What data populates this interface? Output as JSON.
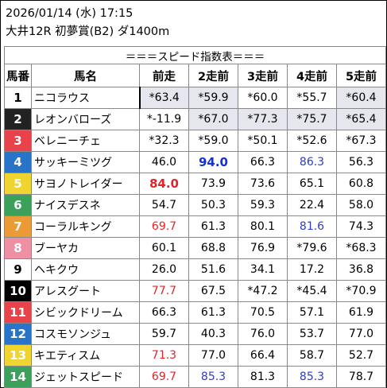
{
  "header": {
    "datetime": "2026/01/14 (水) 17:15",
    "race": "大井12R 初夢賞(B2) ダ1400m"
  },
  "table": {
    "title": "＝＝＝スピード指数表＝＝＝",
    "columns": [
      "馬番",
      "馬名",
      "前走",
      "2走前",
      "3走前",
      "4走前",
      "5走前"
    ],
    "rows": [
      {
        "num": "1",
        "name": "ニコラウス",
        "color": "#ffffff",
        "text_color": "#000000",
        "values": [
          "*63.4",
          "*59.9",
          "*60.0",
          "*55.7",
          "*60.4"
        ],
        "styles": [
          "",
          "",
          "",
          "",
          ""
        ],
        "grey": [
          true,
          true,
          false,
          false,
          true
        ]
      },
      {
        "num": "2",
        "name": "レオンバローズ",
        "color": "#222222",
        "text_color": "#ffffff",
        "values": [
          "*-11.9",
          "*67.0",
          "*77.3",
          "*75.7",
          "*65.4"
        ],
        "styles": [
          "",
          "",
          "",
          "",
          ""
        ],
        "grey": [
          false,
          true,
          true,
          true,
          true
        ]
      },
      {
        "num": "3",
        "name": "ベレニーチェ",
        "color": "#e8424a",
        "text_color": "#ffffff",
        "values": [
          "*32.3",
          "*59.0",
          "*50.1",
          "*52.6",
          "*67.3"
        ],
        "styles": [
          "",
          "",
          "",
          "",
          ""
        ],
        "grey": [
          false,
          false,
          false,
          false,
          false
        ]
      },
      {
        "num": "4",
        "name": "サッキーミツグ",
        "color": "#2874c8",
        "text_color": "#ffffff",
        "values": [
          "46.0",
          "94.0",
          "66.3",
          "86.3",
          "56.3"
        ],
        "styles": [
          "",
          "bblue",
          "",
          "blue",
          ""
        ],
        "grey": [
          false,
          false,
          false,
          false,
          false
        ]
      },
      {
        "num": "5",
        "name": "サヨノトレイダー",
        "color": "#f0d531",
        "text_color": "#ffffff",
        "values": [
          "84.0",
          "73.9",
          "73.6",
          "65.1",
          "60.8"
        ],
        "styles": [
          "bred",
          "",
          "",
          "",
          ""
        ],
        "grey": [
          false,
          false,
          false,
          false,
          false
        ]
      },
      {
        "num": "6",
        "name": "ナイスデスネ",
        "color": "#3aa05a",
        "text_color": "#ffffff",
        "values": [
          "54.7",
          "50.3",
          "59.3",
          "22.4",
          "58.0"
        ],
        "styles": [
          "",
          "",
          "",
          "",
          ""
        ],
        "grey": [
          false,
          false,
          false,
          false,
          false
        ]
      },
      {
        "num": "7",
        "name": "コーラルキング",
        "color": "#ec9a36",
        "text_color": "#ffffff",
        "values": [
          "69.7",
          "61.3",
          "80.1",
          "81.6",
          "74.3"
        ],
        "styles": [
          "red",
          "",
          "",
          "blue",
          ""
        ],
        "grey": [
          false,
          false,
          false,
          false,
          false
        ]
      },
      {
        "num": "8",
        "name": "ブーヤカ",
        "color": "#ee8fa4",
        "text_color": "#ffffff",
        "values": [
          "60.1",
          "68.8",
          "76.9",
          "*79.6",
          "*68.3"
        ],
        "styles": [
          "",
          "",
          "",
          "",
          ""
        ],
        "grey": [
          false,
          false,
          false,
          false,
          false
        ]
      },
      {
        "num": "9",
        "name": "ヘキクウ",
        "color": "#ffffff",
        "text_color": "#000000",
        "values": [
          "26.0",
          "51.6",
          "34.1",
          "17.2",
          "36.8"
        ],
        "styles": [
          "",
          "",
          "",
          "",
          ""
        ],
        "grey": [
          false,
          false,
          false,
          false,
          false
        ]
      },
      {
        "num": "10",
        "name": "アレスグート",
        "color": "#000000",
        "text_color": "#ffffff",
        "values": [
          "77.7",
          "67.5",
          "*47.2",
          "*45.4",
          "*70.9"
        ],
        "styles": [
          "red",
          "",
          "",
          "",
          ""
        ],
        "grey": [
          false,
          false,
          false,
          false,
          false
        ]
      },
      {
        "num": "11",
        "name": "シビックドリーム",
        "color": "#e8424a",
        "text_color": "#ffffff",
        "values": [
          "66.3",
          "61.3",
          "70.5",
          "57.1",
          "61.9"
        ],
        "styles": [
          "",
          "",
          "",
          "",
          ""
        ],
        "grey": [
          false,
          false,
          false,
          false,
          false
        ]
      },
      {
        "num": "12",
        "name": "コスモソンジュ",
        "color": "#2874c8",
        "text_color": "#ffffff",
        "values": [
          "59.7",
          "40.3",
          "76.0",
          "53.7",
          "77.0"
        ],
        "styles": [
          "",
          "",
          "",
          "",
          ""
        ],
        "grey": [
          false,
          false,
          false,
          false,
          false
        ]
      },
      {
        "num": "13",
        "name": "キエティスム",
        "color": "#f0d531",
        "text_color": "#ffffff",
        "values": [
          "71.3",
          "77.0",
          "66.4",
          "58.7",
          "52.7"
        ],
        "styles": [
          "red",
          "",
          "",
          "",
          ""
        ],
        "grey": [
          false,
          false,
          false,
          false,
          false
        ]
      },
      {
        "num": "14",
        "name": "ジェットスピード",
        "color": "#3aa05a",
        "text_color": "#ffffff",
        "values": [
          "69.7",
          "85.3",
          "81.3",
          "85.3",
          "78.7"
        ],
        "styles": [
          "red",
          "blue",
          "",
          "blue",
          ""
        ],
        "grey": [
          false,
          false,
          false,
          false,
          false
        ]
      }
    ]
  }
}
